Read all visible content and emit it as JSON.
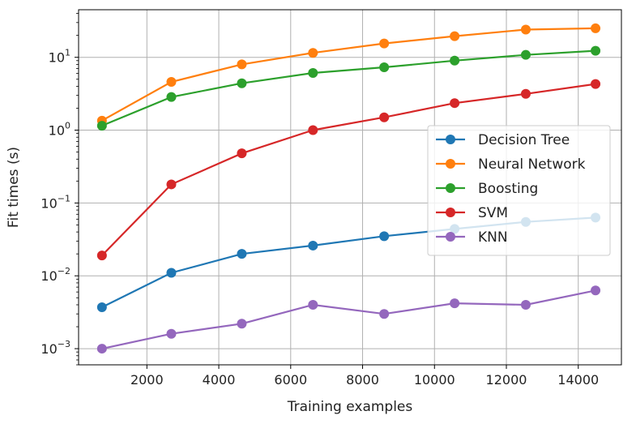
{
  "chart_data": {
    "type": "line",
    "title": "",
    "xlabel": "Training examples",
    "ylabel": "Fit times (s)",
    "xscale": "linear",
    "yscale": "log",
    "xlim": [
      100,
      15200
    ],
    "ylim": [
      0.0006,
      45
    ],
    "grid": true,
    "legend_position": "center-right",
    "x": [
      750,
      2680,
      4640,
      6620,
      8600,
      10560,
      12540,
      14480
    ],
    "x_ticks": [
      {
        "value": 2000,
        "label": "2000"
      },
      {
        "value": 4000,
        "label": "4000"
      },
      {
        "value": 6000,
        "label": "6000"
      },
      {
        "value": 8000,
        "label": "8000"
      },
      {
        "value": 10000,
        "label": "10000"
      },
      {
        "value": 12000,
        "label": "12000"
      },
      {
        "value": 14000,
        "label": "14000"
      }
    ],
    "y_ticks": [
      {
        "value": 0.001,
        "base": "10",
        "exp": "−3"
      },
      {
        "value": 0.01,
        "base": "10",
        "exp": "−2"
      },
      {
        "value": 0.1,
        "base": "10",
        "exp": "−1"
      },
      {
        "value": 1,
        "base": "10",
        "exp": "0"
      },
      {
        "value": 10,
        "base": "10",
        "exp": "1"
      }
    ],
    "series": [
      {
        "name": "Decision Tree",
        "color": "#1f77b4",
        "values": [
          0.0037,
          0.011,
          0.02,
          0.026,
          0.035,
          0.044,
          0.055,
          0.063
        ]
      },
      {
        "name": "Neural Network",
        "color": "#ff7f0e",
        "values": [
          1.35,
          4.6,
          8.0,
          11.5,
          15.5,
          19.5,
          24.0,
          25.0
        ]
      },
      {
        "name": "Boosting",
        "color": "#2ca02c",
        "values": [
          1.15,
          2.85,
          4.4,
          6.1,
          7.3,
          9.0,
          10.8,
          12.3
        ]
      },
      {
        "name": "SVM",
        "color": "#d62728",
        "values": [
          0.019,
          0.18,
          0.48,
          1.0,
          1.5,
          2.35,
          3.15,
          4.3
        ]
      },
      {
        "name": "KNN",
        "color": "#9467bd",
        "values": [
          0.001,
          0.0016,
          0.0022,
          0.004,
          0.003,
          0.0042,
          0.004,
          0.0063
        ]
      }
    ]
  }
}
